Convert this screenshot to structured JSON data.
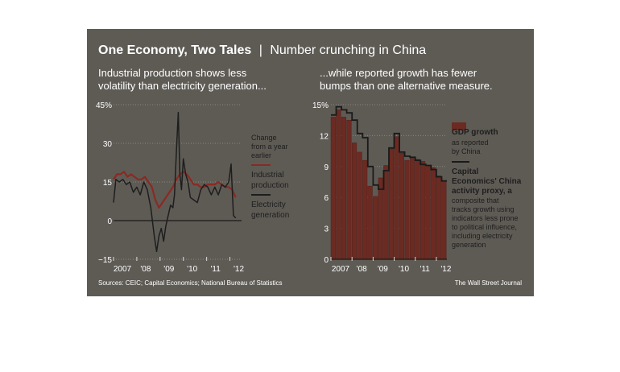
{
  "header": {
    "title": "One Economy, Two Tales",
    "separator": "|",
    "subtitle": "Number crunching in China"
  },
  "footer": {
    "sources": "Sources: CEIC; Capital Economics; National Bureau of Statistics",
    "credit": "The Wall Street Journal"
  },
  "colors": {
    "panel_bg": "#5e5b55",
    "industrial": "#8a2a22",
    "electricity": "#1e1e1e",
    "gdp_bar": "#6b2a22",
    "capital_line": "#1a1a1a",
    "text": "#ffffff"
  },
  "chart_data": [
    {
      "type": "line",
      "title": "Industrial production shows less volatility than electricity generation...",
      "title_lines": [
        "Industrial production shows less",
        "volatility than electricity generation..."
      ],
      "ylim": [
        -15,
        45
      ],
      "yticks": [
        -15,
        0,
        15,
        30,
        45
      ],
      "ytick_labels": [
        "−15",
        "0",
        "15",
        "30",
        "45%"
      ],
      "xlim": [
        2007,
        2012.5
      ],
      "xticks": [
        2007,
        2008,
        2009,
        2010,
        2011,
        2012
      ],
      "xtick_labels": [
        "2007",
        "'08",
        "'09",
        "'10",
        "'11",
        "'12"
      ],
      "legend_header": [
        "Change",
        "from a year",
        "earlier"
      ],
      "series": [
        {
          "name": "Industrial production",
          "label_lines": [
            "Industrial",
            "production"
          ],
          "color": "#8a2a22",
          "x": [
            2007.0,
            2007.15,
            2007.3,
            2007.45,
            2007.6,
            2007.75,
            2007.9,
            2008.05,
            2008.2,
            2008.35,
            2008.5,
            2008.65,
            2008.8,
            2008.95,
            2009.1,
            2009.25,
            2009.4,
            2009.55,
            2009.7,
            2009.85,
            2010.0,
            2010.15,
            2010.3,
            2010.45,
            2010.6,
            2010.75,
            2010.9,
            2011.05,
            2011.2,
            2011.35,
            2011.5,
            2011.65,
            2011.8,
            2011.95,
            2012.1,
            2012.25
          ],
          "y": [
            16,
            18,
            18,
            19,
            17,
            18,
            17,
            16,
            16,
            17,
            15,
            13,
            8,
            5,
            7,
            9,
            11,
            13,
            16,
            18,
            19,
            18,
            16,
            14,
            14,
            13,
            13,
            14,
            14,
            14,
            15,
            14,
            13,
            13,
            12,
            9
          ]
        },
        {
          "name": "Electricity generation",
          "label_lines": [
            "Electricity",
            "generation"
          ],
          "color": "#1e1e1e",
          "x": [
            2007.0,
            2007.1,
            2007.25,
            2007.4,
            2007.55,
            2007.7,
            2007.85,
            2008.0,
            2008.15,
            2008.3,
            2008.45,
            2008.6,
            2008.75,
            2008.85,
            2008.95,
            2009.05,
            2009.15,
            2009.25,
            2009.35,
            2009.45,
            2009.55,
            2009.62,
            2009.7,
            2009.78,
            2009.85,
            2009.92,
            2010.0,
            2010.1,
            2010.2,
            2010.3,
            2010.45,
            2010.6,
            2010.75,
            2010.9,
            2011.05,
            2011.2,
            2011.35,
            2011.5,
            2011.65,
            2011.8,
            2011.95,
            2012.05,
            2012.15,
            2012.25
          ],
          "y": [
            7,
            16,
            15,
            16,
            14,
            15,
            11,
            13,
            10,
            15,
            12,
            5,
            -6,
            -12,
            -6,
            -3,
            -8,
            -2,
            2,
            6,
            5,
            10,
            27,
            42,
            18,
            12,
            24,
            18,
            15,
            9,
            8,
            7,
            12,
            14,
            13,
            10,
            13,
            10,
            14,
            13,
            15,
            22,
            2,
            1
          ]
        }
      ]
    },
    {
      "type": "bar",
      "title": "...while reported growth has fewer bumps than one alternative measure.",
      "title_lines": [
        "...while reported growth has fewer",
        "bumps than one alternative measure."
      ],
      "ylim": [
        0,
        15
      ],
      "yticks": [
        0,
        3,
        6,
        9,
        12,
        15
      ],
      "ytick_labels": [
        "0",
        "3",
        "6",
        "9",
        "12",
        "15%"
      ],
      "xlim": [
        2007,
        2012.5
      ],
      "xticks": [
        2007,
        2008,
        2009,
        2010,
        2011,
        2012
      ],
      "xtick_labels": [
        "2007",
        "'08",
        "'09",
        "'10",
        "'11",
        "'12"
      ],
      "series": [
        {
          "name": "GDP growth",
          "label_lines": [
            "GDP growth"
          ],
          "sub_lines": [
            "as reported",
            "by China"
          ],
          "color": "#6b2a22",
          "x": [
            2007.125,
            2007.375,
            2007.625,
            2007.875,
            2008.125,
            2008.375,
            2008.625,
            2008.875,
            2009.125,
            2009.375,
            2009.625,
            2009.875,
            2010.125,
            2010.375,
            2010.625,
            2010.875,
            2011.125,
            2011.375,
            2011.625,
            2011.875,
            2012.125,
            2012.375
          ],
          "values": [
            13.8,
            14.5,
            13.8,
            13.5,
            11.3,
            10.4,
            9.6,
            7.1,
            6.1,
            7.9,
            9.1,
            10.7,
            11.9,
            10.3,
            9.6,
            9.8,
            9.7,
            9.5,
            9.1,
            8.9,
            8.1,
            7.6
          ]
        },
        {
          "name": "Capital Economics' China activity proxy",
          "label_lines": [
            "Capital",
            "Economics' China",
            "activity proxy, a"
          ],
          "sub_lines": [
            "composite that",
            "tracks growth using",
            "indicators less prone",
            "to political influence,",
            "including electricity",
            "generation"
          ],
          "color": "#1a1a1a",
          "x": [
            2007.0,
            2007.25,
            2007.5,
            2007.75,
            2008.0,
            2008.25,
            2008.5,
            2008.75,
            2009.0,
            2009.25,
            2009.5,
            2009.75,
            2010.0,
            2010.25,
            2010.5,
            2010.75,
            2011.0,
            2011.25,
            2011.5,
            2011.75,
            2012.0,
            2012.25,
            2012.5
          ],
          "y": [
            14.0,
            14.8,
            14.5,
            14.2,
            13.5,
            12.2,
            11.8,
            9.0,
            7.2,
            6.8,
            8.6,
            10.8,
            12.2,
            10.4,
            10.0,
            9.9,
            9.6,
            9.2,
            9.1,
            8.7,
            8.0,
            7.6,
            7.6
          ]
        }
      ]
    }
  ]
}
